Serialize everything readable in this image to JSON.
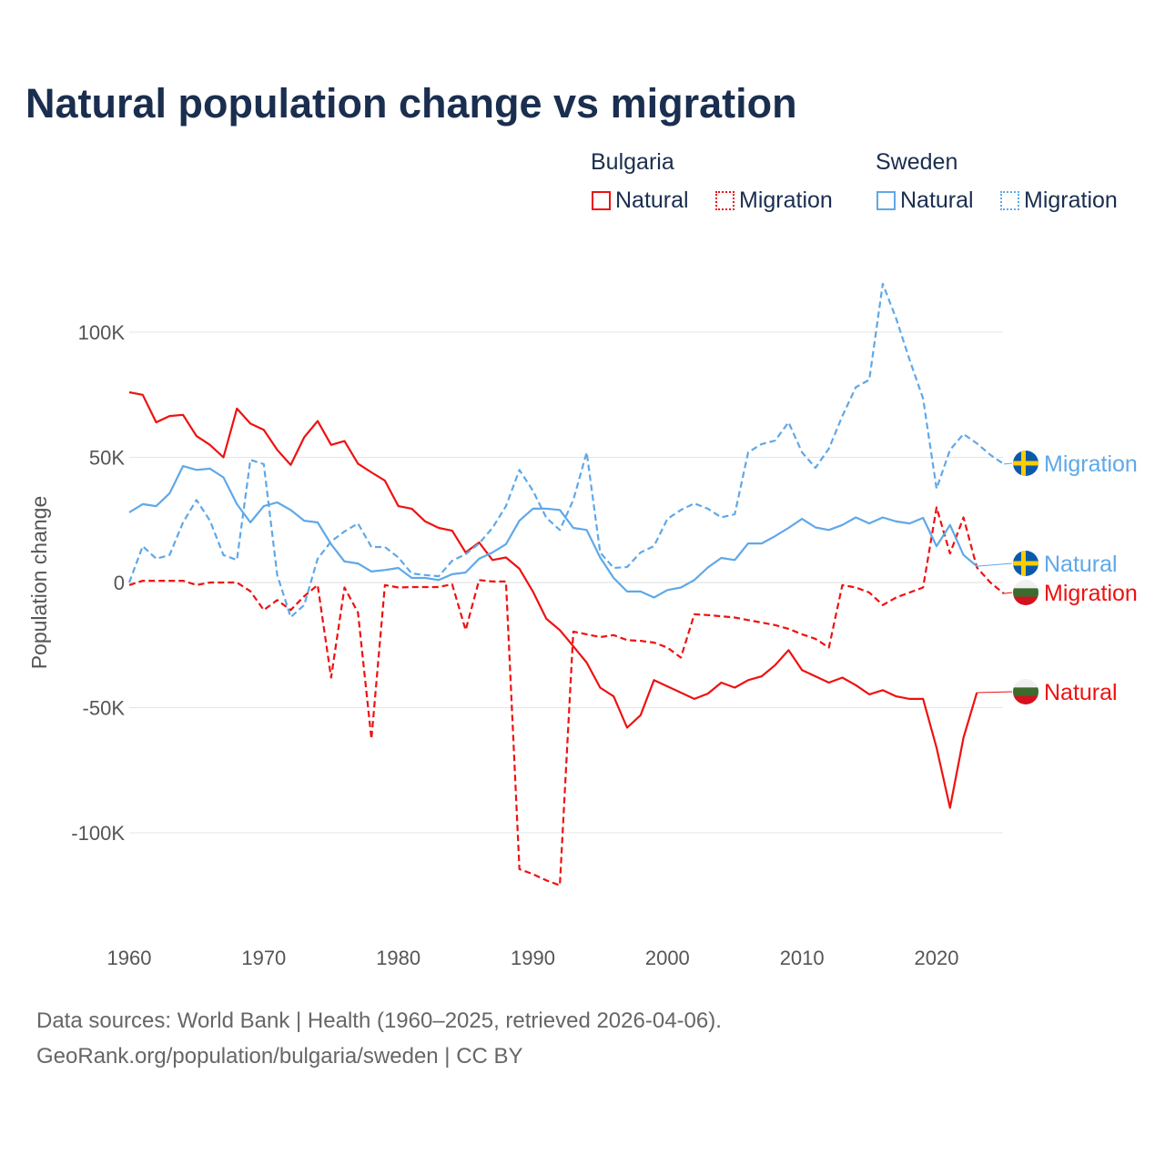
{
  "chart_data": {
    "type": "line",
    "title": "Natural population change vs migration",
    "xlabel": "",
    "ylabel": "Population change",
    "xlim": [
      1960,
      2025
    ],
    "ylim": [
      -130000,
      125000
    ],
    "x_ticks": [
      1960,
      1970,
      1980,
      1990,
      2000,
      2010,
      2020
    ],
    "x_tick_labels": [
      "1960",
      "1970",
      "1980",
      "1990",
      "2000",
      "2010",
      "2020"
    ],
    "y_ticks": [
      100000,
      50000,
      0,
      -50000,
      -100000
    ],
    "y_tick_labels": [
      "100K",
      "50K",
      "0",
      "-50K",
      "-100K"
    ],
    "grid": true,
    "legend": {
      "placement": "top-right",
      "groups": [
        {
          "name": "Bulgaria",
          "items": [
            "Natural",
            "Migration"
          ]
        },
        {
          "name": "Sweden",
          "items": [
            "Natural",
            "Migration"
          ]
        }
      ]
    },
    "series": [
      {
        "name": "Bulgaria Natural",
        "country": "Bulgaria",
        "kind": "Natural",
        "color": "#ee1111",
        "dash": false,
        "start_year": 1960,
        "values": [
          76000,
          75000,
          64000,
          66500,
          67000,
          58500,
          55000,
          50000,
          69500,
          63500,
          61000,
          53000,
          47000,
          58000,
          64500,
          55000,
          56500,
          47500,
          44000,
          40700,
          30500,
          29500,
          24400,
          21800,
          20700,
          12000,
          16000,
          9000,
          10000,
          5500,
          -3600,
          -14500,
          -19000,
          -25500,
          -32000,
          -42000,
          -45500,
          -58000,
          -53000,
          -39000,
          -41500,
          -44000,
          -46500,
          -44400,
          -40000,
          -42000,
          -39000,
          -37500,
          -33000,
          -27000,
          -35000,
          -37500,
          -40000,
          -38000,
          -41000,
          -44700,
          -43000,
          -45500,
          -46500,
          -46500,
          -66000,
          -90000,
          -62000,
          -44000
        ]
      },
      {
        "name": "Bulgaria Migration",
        "country": "Bulgaria",
        "kind": "Migration",
        "color": "#ee1111",
        "dash": true,
        "start_year": 1960,
        "values": [
          -1000,
          700,
          700,
          700,
          700,
          -1000,
          0,
          0,
          0,
          -3500,
          -11000,
          -7000,
          -11000,
          -5500,
          -1000,
          -38000,
          -2000,
          -12000,
          -62500,
          -1000,
          -2000,
          -1800,
          -1800,
          -1800,
          -700,
          -19000,
          1000,
          400,
          400,
          -114500,
          -116500,
          -119000,
          -121000,
          -19600,
          -20700,
          -21800,
          -21000,
          -23000,
          -23300,
          -24000,
          -26000,
          -30000,
          -12700,
          -13000,
          -13500,
          -14000,
          -15000,
          -16000,
          -17000,
          -18500,
          -20700,
          -22500,
          -26000,
          -1000,
          -2000,
          -4000,
          -9000,
          -6000,
          -4000,
          -2000,
          30000,
          11600,
          26000,
          6000,
          0,
          -4400
        ]
      },
      {
        "name": "Sweden Natural",
        "country": "Sweden",
        "kind": "Natural",
        "color": "#5fa8e8",
        "dash": false,
        "start_year": 1960,
        "values": [
          28000,
          31300,
          30500,
          35600,
          46500,
          45000,
          45500,
          42000,
          31300,
          24000,
          30500,
          32000,
          29000,
          24700,
          24000,
          15300,
          8400,
          7600,
          4400,
          5000,
          5800,
          1800,
          1800,
          1000,
          3300,
          4000,
          9500,
          12000,
          15300,
          24700,
          29500,
          29500,
          29000,
          21800,
          21000,
          10000,
          1800,
          -3600,
          -3600,
          -6000,
          -3000,
          -2000,
          1000,
          6000,
          9800,
          9000,
          15600,
          15600,
          18500,
          21800,
          25400,
          22000,
          21000,
          23000,
          26000,
          23600,
          26000,
          24400,
          23600,
          25800,
          14500,
          23000,
          11000,
          6500
        ]
      },
      {
        "name": "Sweden Migration",
        "country": "Sweden",
        "kind": "Migration",
        "color": "#5fa8e8",
        "dash": true,
        "start_year": 1960,
        "values": [
          0,
          14500,
          9500,
          11000,
          24000,
          33000,
          24700,
          11000,
          9000,
          49000,
          47300,
          3000,
          -13800,
          -9000,
          9500,
          16400,
          20400,
          23600,
          14200,
          14200,
          10000,
          3600,
          3000,
          2500,
          8700,
          11300,
          15600,
          21800,
          30500,
          45000,
          36700,
          25800,
          21000,
          33000,
          52000,
          12000,
          5800,
          6200,
          12000,
          14500,
          25400,
          29000,
          31600,
          29500,
          26000,
          27300,
          52000,
          55300,
          56700,
          64000,
          52000,
          45800,
          53500,
          66500,
          78000,
          81000,
          119300,
          105500,
          89000,
          73500,
          37500,
          53000,
          59300,
          55600,
          51000,
          47300
        ]
      }
    ],
    "end_labels": [
      "Migration",
      "Natural",
      "Migration",
      "Natural"
    ]
  },
  "title": "Natural population change vs migration",
  "legend": {
    "bulgaria": "Bulgaria",
    "sweden": "Sweden",
    "natural": "Natural",
    "migration": "Migration"
  },
  "footer": {
    "line1": "Data sources: World Bank | Health (1960–2025, retrieved 2026-04-06).",
    "line2": "GeoRank.org/population/bulgaria/sweden | CC BY"
  },
  "colors": {
    "bulgaria": "#ee1111",
    "sweden": "#5fa8e8",
    "title": "#1a2e4f"
  }
}
